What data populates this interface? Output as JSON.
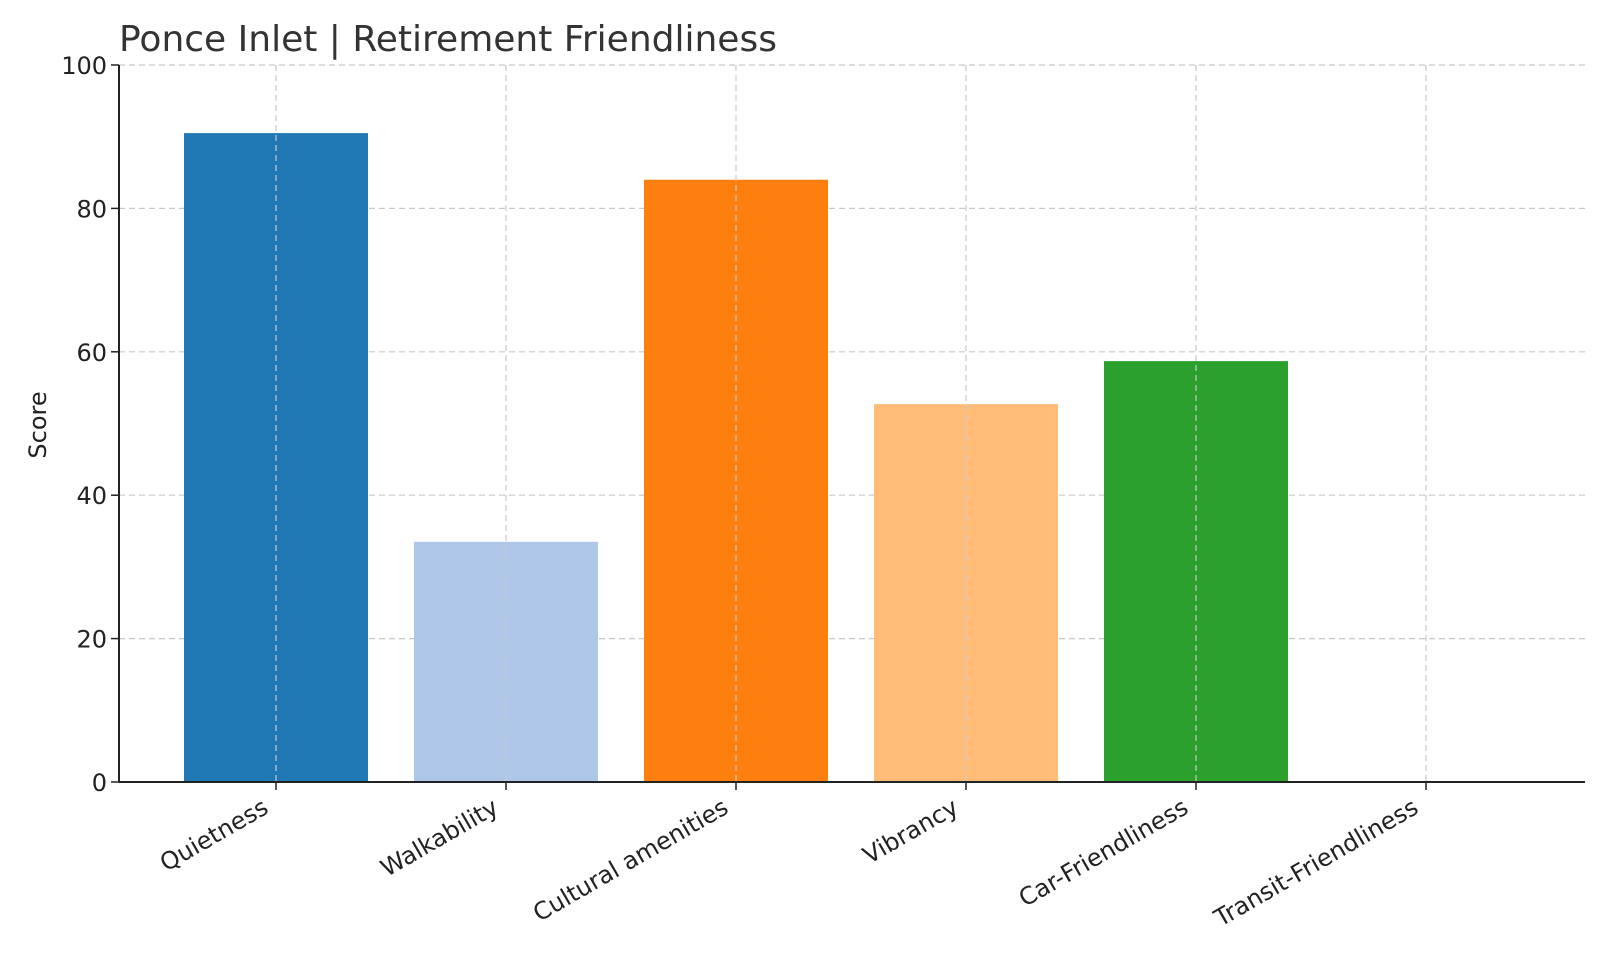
{
  "chart_data": {
    "type": "bar",
    "title": "Ponce Inlet | Retirement Friendliness",
    "xlabel": "",
    "ylabel": "Score",
    "ylim": [
      0,
      100
    ],
    "yticks": [
      0,
      20,
      40,
      60,
      80,
      100
    ],
    "grid": true,
    "categories": [
      "Quietness",
      "Walkability",
      "Cultural amenities",
      "Vibrancy",
      "Car-Friendliness",
      "Transit-Friendliness"
    ],
    "values": [
      90.5,
      33.5,
      84,
      52.7,
      58.7,
      0
    ],
    "colors": [
      "#1f77b4",
      "#aec7e8",
      "#ff7f0e",
      "#ffbb78",
      "#2ca02c",
      "#98df8a"
    ]
  }
}
